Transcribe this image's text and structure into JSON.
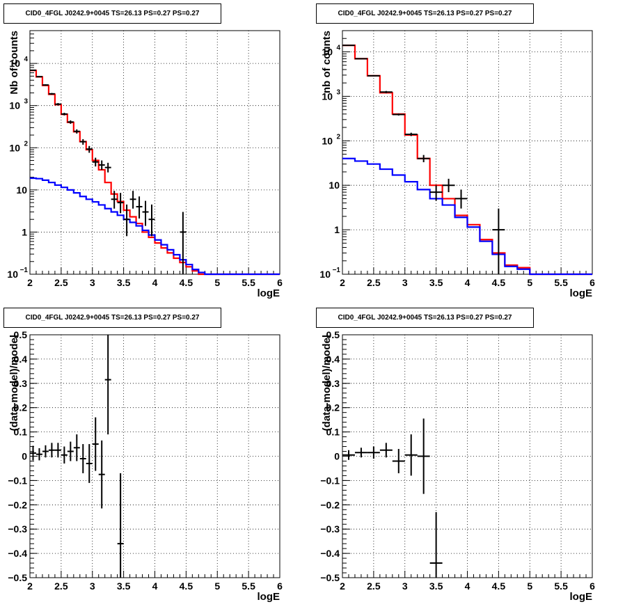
{
  "chart_data": [
    {
      "type": "line",
      "title": "CID0_4FGL J0242.9+0045 TS=26.13 PS=0.27 PS=0.27",
      "xlabel": "logE",
      "ylabel": "Nb of counts",
      "xlim": [
        2,
        6
      ],
      "ylim": [
        0.1,
        60000
      ],
      "yscale": "log",
      "grid": true,
      "x_ticks": [
        "2",
        "2.5",
        "3",
        "3.5",
        "4",
        "4.5",
        "5",
        "5.5",
        "6"
      ],
      "y_ticks": [
        {
          "value": 0.1,
          "label": "10",
          "exp": "−1"
        },
        {
          "value": 1,
          "label": "1",
          "exp": ""
        },
        {
          "value": 10,
          "label": "10",
          "exp": ""
        },
        {
          "value": 100,
          "label": "10",
          "exp": "2"
        },
        {
          "value": 1000,
          "label": "10",
          "exp": "3"
        },
        {
          "value": 10000,
          "label": "10",
          "exp": "4"
        }
      ],
      "bin_width": 0.1,
      "series": [
        {
          "color": "#ff0000",
          "kind": "step",
          "bin_centers": [
            2.05,
            2.15,
            2.25,
            2.35,
            2.45,
            2.55,
            2.65,
            2.75,
            2.85,
            2.95,
            3.05,
            3.15,
            3.25,
            3.35,
            3.45,
            3.55,
            3.65,
            3.75,
            3.85,
            3.95,
            4.05,
            4.15,
            4.25,
            4.35,
            4.45,
            4.55,
            4.65,
            4.75,
            4.85,
            4.95,
            5.05,
            5.15,
            5.25,
            5.35,
            5.45,
            5.55,
            5.65,
            5.75,
            5.85,
            5.95
          ],
          "values": [
            6800,
            4800,
            3000,
            1850,
            1050,
            620,
            400,
            240,
            140,
            90,
            50,
            30,
            15,
            8,
            5.3,
            3.3,
            2.3,
            1.6,
            1.0,
            0.75,
            0.55,
            0.42,
            0.32,
            0.24,
            0.19,
            0.15,
            0.12,
            0.1,
            0.1,
            0.1,
            0.1,
            0.1,
            0.1,
            0.1,
            0.1,
            0.1,
            0.1,
            0.1,
            0.1,
            0.1
          ]
        },
        {
          "color": "#0000ff",
          "kind": "step",
          "bin_centers": [
            2.05,
            2.15,
            2.25,
            2.35,
            2.45,
            2.55,
            2.65,
            2.75,
            2.85,
            2.95,
            3.05,
            3.15,
            3.25,
            3.35,
            3.45,
            3.55,
            3.65,
            3.75,
            3.85,
            3.95,
            4.05,
            4.15,
            4.25,
            4.35,
            4.45,
            4.55,
            4.65,
            4.75,
            4.85,
            4.95,
            5.05,
            5.15,
            5.25,
            5.35,
            5.45,
            5.55,
            5.65,
            5.75,
            5.85,
            5.95
          ],
          "values": [
            19,
            18.5,
            17,
            15,
            13,
            11.5,
            10,
            8.5,
            7,
            6,
            5.2,
            4.4,
            3.6,
            3,
            2.5,
            2.0,
            1.7,
            1.4,
            1.1,
            0.85,
            0.65,
            0.5,
            0.38,
            0.29,
            0.22,
            0.17,
            0.13,
            0.11,
            0.1,
            0.1,
            0.1,
            0.1,
            0.1,
            0.1,
            0.1,
            0.1,
            0.1,
            0.1,
            0.1,
            0.1
          ]
        },
        {
          "color": "#000000",
          "kind": "points",
          "points": [
            {
              "x": 2.05,
              "y": 6900,
              "lo": 6700,
              "hi": 7100
            },
            {
              "x": 2.15,
              "y": 4850,
              "lo": 4700,
              "hi": 5000
            },
            {
              "x": 2.25,
              "y": 3080,
              "lo": 2960,
              "hi": 3200
            },
            {
              "x": 2.35,
              "y": 1900,
              "lo": 1810,
              "hi": 1990
            },
            {
              "x": 2.45,
              "y": 1080,
              "lo": 1010,
              "hi": 1150
            },
            {
              "x": 2.55,
              "y": 630,
              "lo": 585,
              "hi": 675
            },
            {
              "x": 2.65,
              "y": 408,
              "lo": 370,
              "hi": 446
            },
            {
              "x": 2.75,
              "y": 245,
              "lo": 217,
              "hi": 273
            },
            {
              "x": 2.85,
              "y": 139,
              "lo": 118,
              "hi": 160
            },
            {
              "x": 2.95,
              "y": 93,
              "lo": 76,
              "hi": 110
            },
            {
              "x": 3.05,
              "y": 46,
              "lo": 36,
              "hi": 58
            },
            {
              "x": 3.15,
              "y": 39,
              "lo": 30,
              "hi": 50
            },
            {
              "x": 3.25,
              "y": 34,
              "lo": 26,
              "hi": 44
            },
            {
              "x": 3.35,
              "y": 6,
              "lo": 3.6,
              "hi": 9.5
            },
            {
              "x": 3.45,
              "y": 5,
              "lo": 2.8,
              "hi": 8.5
            },
            {
              "x": 3.55,
              "y": 2,
              "lo": 0.8,
              "hi": 4.5
            },
            {
              "x": 3.65,
              "y": 6,
              "lo": 3.6,
              "hi": 9.5
            },
            {
              "x": 3.75,
              "y": 4,
              "lo": 2.1,
              "hi": 7
            },
            {
              "x": 3.85,
              "y": 3,
              "lo": 1.4,
              "hi": 5.5
            },
            {
              "x": 3.95,
              "y": 2,
              "lo": 0.8,
              "hi": 4.5
            },
            {
              "x": 4.45,
              "y": 1,
              "lo": 0.1,
              "hi": 3
            }
          ]
        }
      ]
    },
    {
      "type": "line",
      "title": "CID0_4FGL J0242.9+0045 TS=26.13 PS=0.27 PS=0.27",
      "xlabel": "logE",
      "ylabel": "nb of counts",
      "xlim": [
        2,
        6
      ],
      "ylim": [
        0.1,
        30000
      ],
      "yscale": "log",
      "grid": true,
      "x_ticks": [
        "2",
        "2.5",
        "3",
        "3.5",
        "4",
        "4.5",
        "5",
        "5.5",
        "6"
      ],
      "y_ticks": [
        {
          "value": 0.1,
          "label": "10",
          "exp": "−1"
        },
        {
          "value": 1,
          "label": "1",
          "exp": ""
        },
        {
          "value": 10,
          "label": "10",
          "exp": ""
        },
        {
          "value": 100,
          "label": "10",
          "exp": "2"
        },
        {
          "value": 1000,
          "label": "10",
          "exp": "3"
        },
        {
          "value": 10000,
          "label": "10",
          "exp": "4"
        }
      ],
      "bin_width": 0.2,
      "series": [
        {
          "color": "#ff0000",
          "kind": "step",
          "bin_centers": [
            2.1,
            2.3,
            2.5,
            2.7,
            2.9,
            3.1,
            3.3,
            3.5,
            3.7,
            3.9,
            4.1,
            4.3,
            4.5,
            4.7,
            4.9,
            5.1,
            5.3,
            5.5,
            5.7,
            5.9
          ],
          "values": [
            14000,
            7000,
            2900,
            1200,
            400,
            135,
            40,
            10,
            5,
            2.1,
            1.3,
            0.6,
            0.3,
            0.16,
            0.14,
            0.1,
            0.1,
            0.1,
            0.1,
            0.1
          ]
        },
        {
          "color": "#0000ff",
          "kind": "step",
          "bin_centers": [
            2.1,
            2.3,
            2.5,
            2.7,
            2.9,
            3.1,
            3.3,
            3.5,
            3.7,
            3.9,
            4.1,
            4.3,
            4.5,
            4.7,
            4.9,
            5.1,
            5.3,
            5.5,
            5.7,
            5.9
          ],
          "values": [
            40,
            35,
            30,
            23,
            17,
            12,
            8,
            5,
            3.6,
            1.9,
            1.15,
            0.55,
            0.28,
            0.15,
            0.13,
            0.1,
            0.1,
            0.1,
            0.1,
            0.1
          ]
        },
        {
          "color": "#000000",
          "kind": "points",
          "points": [
            {
              "x": 2.1,
              "y": 14000,
              "lo": 13700,
              "hi": 14300
            },
            {
              "x": 2.3,
              "y": 7000,
              "lo": 6800,
              "hi": 7200
            },
            {
              "x": 2.5,
              "y": 2900,
              "lo": 2800,
              "hi": 3000
            },
            {
              "x": 2.7,
              "y": 1250,
              "lo": 1180,
              "hi": 1320
            },
            {
              "x": 2.9,
              "y": 390,
              "lo": 370,
              "hi": 410
            },
            {
              "x": 3.1,
              "y": 140,
              "lo": 128,
              "hi": 152
            },
            {
              "x": 3.3,
              "y": 40,
              "lo": 33,
              "hi": 48
            },
            {
              "x": 3.5,
              "y": 7,
              "lo": 4.5,
              "hi": 10
            },
            {
              "x": 3.7,
              "y": 10,
              "lo": 7,
              "hi": 14
            },
            {
              "x": 3.9,
              "y": 5,
              "lo": 3,
              "hi": 8
            },
            {
              "x": 4.5,
              "y": 1,
              "lo": 0.1,
              "hi": 3
            }
          ]
        }
      ]
    },
    {
      "type": "scatter",
      "title": "CID0_4FGL J0242.9+0045 TS=26.13 PS=0.27 PS=0.27",
      "xlabel": "logE",
      "ylabel": "(data-model)/model",
      "xlim": [
        2,
        6
      ],
      "ylim": [
        -0.5,
        0.5
      ],
      "grid": true,
      "x_ticks": [
        "2",
        "2.5",
        "3",
        "3.5",
        "4",
        "4.5",
        "5",
        "5.5",
        "6"
      ],
      "y_ticks": [
        "−0.5",
        "−0.4",
        "−0.3",
        "−0.2",
        "−0.1",
        "0",
        "0.1",
        "0.2",
        "0.3",
        "0.4",
        "0.5"
      ],
      "bin_width": 0.1,
      "points": [
        {
          "x": 2.05,
          "y": 0.013,
          "err": 0.03
        },
        {
          "x": 2.15,
          "y": 0.008,
          "err": 0.025
        },
        {
          "x": 2.25,
          "y": 0.02,
          "err": 0.025
        },
        {
          "x": 2.35,
          "y": 0.025,
          "err": 0.03
        },
        {
          "x": 2.45,
          "y": 0.025,
          "err": 0.03
        },
        {
          "x": 2.55,
          "y": 0.005,
          "err": 0.035
        },
        {
          "x": 2.65,
          "y": 0.02,
          "err": 0.04
        },
        {
          "x": 2.75,
          "y": 0.035,
          "err": 0.055
        },
        {
          "x": 2.85,
          "y": -0.01,
          "err": 0.06
        },
        {
          "x": 2.95,
          "y": -0.03,
          "err": 0.08
        },
        {
          "x": 3.05,
          "y": 0.05,
          "err": 0.11
        },
        {
          "x": 3.15,
          "y": -0.075,
          "err": 0.14
        },
        {
          "x": 3.25,
          "y": 0.315,
          "err": 0.225
        },
        {
          "x": 3.45,
          "y": -0.36,
          "err": 0.29
        }
      ]
    },
    {
      "type": "scatter",
      "title": "CID0_4FGL J0242.9+0045 TS=26.13 PS=0.27 PS=0.27",
      "xlabel": "logE",
      "ylabel": "(data-model)/model",
      "xlim": [
        2,
        6
      ],
      "ylim": [
        -0.5,
        0.5
      ],
      "grid": true,
      "x_ticks": [
        "2",
        "2.5",
        "3",
        "3.5",
        "4",
        "4.5",
        "5",
        "5.5",
        "6"
      ],
      "y_ticks": [
        "−0.5",
        "−0.4",
        "−0.3",
        "−0.2",
        "−0.1",
        "0",
        "0.1",
        "0.2",
        "0.3",
        "0.4",
        "0.5"
      ],
      "bin_width": 0.2,
      "points": [
        {
          "x": 2.1,
          "y": 0.005,
          "err": 0.02
        },
        {
          "x": 2.3,
          "y": 0.015,
          "err": 0.02
        },
        {
          "x": 2.5,
          "y": 0.015,
          "err": 0.025
        },
        {
          "x": 2.7,
          "y": 0.025,
          "err": 0.03
        },
        {
          "x": 2.9,
          "y": -0.02,
          "err": 0.05
        },
        {
          "x": 3.1,
          "y": 0.005,
          "err": 0.085
        },
        {
          "x": 3.3,
          "y": 0.0,
          "err": 0.155
        },
        {
          "x": 3.5,
          "y": -0.44,
          "err": 0.21
        }
      ]
    }
  ]
}
